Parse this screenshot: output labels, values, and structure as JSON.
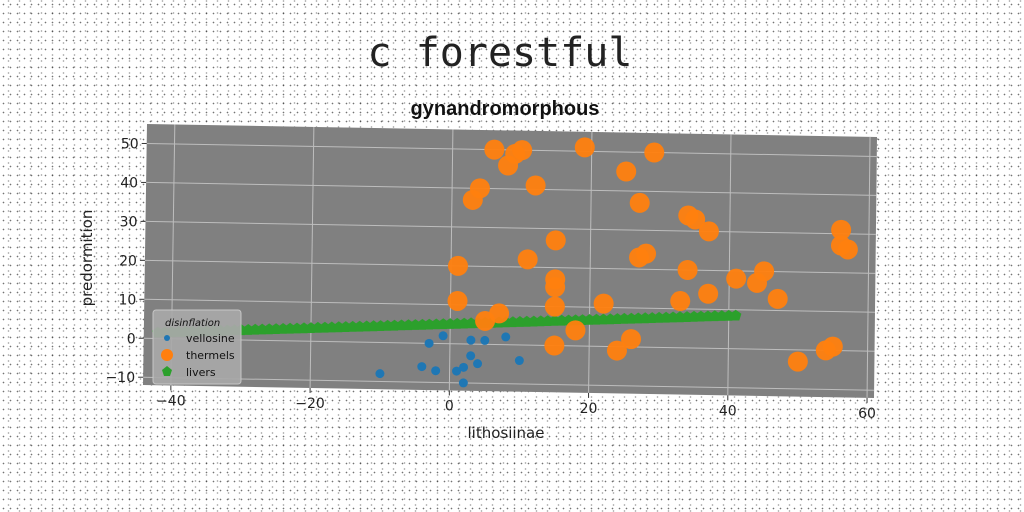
{
  "page": {
    "suptitle": "c forestful"
  },
  "colors": {
    "vellosine": "#1f77b4",
    "thermels": "#ff7f0e",
    "livers": "#2ca02c",
    "plot_bg": "#808080",
    "grid": "#bdbdbd"
  },
  "chart_data": {
    "type": "scatter",
    "title": "gynandromorphous",
    "xlabel": "lithosiinae",
    "ylabel": "predormition",
    "xlim": [
      -44,
      61
    ],
    "ylim": [
      -12,
      55
    ],
    "xticks": [
      "−40",
      "−20",
      "0",
      "20",
      "40",
      "60"
    ],
    "yticks": [
      "−10",
      "0",
      "10",
      "20",
      "30",
      "40",
      "50"
    ],
    "xtick_values": [
      -40,
      -20,
      0,
      20,
      40,
      60
    ],
    "ytick_values": [
      -10,
      0,
      10,
      20,
      30,
      40,
      50
    ],
    "grid": true,
    "legend": {
      "title": "disinflation",
      "position": "lower-left"
    },
    "series": [
      {
        "name": "vellosine",
        "marker": "circle",
        "points": [
          [
            -10,
            -8
          ],
          [
            -4,
            -6
          ],
          [
            -3,
            0
          ],
          [
            -2,
            -7
          ],
          [
            -1,
            2
          ],
          [
            1,
            -7
          ],
          [
            2,
            -6
          ],
          [
            2,
            -10
          ],
          [
            3,
            1
          ],
          [
            3,
            -3
          ],
          [
            4,
            -5
          ],
          [
            5,
            1
          ],
          [
            8,
            2
          ],
          [
            10,
            -4
          ]
        ]
      },
      {
        "name": "thermels",
        "marker": "circle-large",
        "points": [
          [
            1,
            20
          ],
          [
            1,
            11
          ],
          [
            3,
            37
          ],
          [
            4,
            40
          ],
          [
            5,
            6
          ],
          [
            6,
            50
          ],
          [
            7,
            8
          ],
          [
            8,
            46
          ],
          [
            9,
            49
          ],
          [
            10,
            50
          ],
          [
            11,
            22
          ],
          [
            12,
            41
          ],
          [
            15,
            10
          ],
          [
            15,
            27
          ],
          [
            15,
            17
          ],
          [
            15,
            15
          ],
          [
            15,
            0
          ],
          [
            18,
            4
          ],
          [
            19,
            51
          ],
          [
            22,
            11
          ],
          [
            24,
            -1
          ],
          [
            25,
            45
          ],
          [
            26,
            2
          ],
          [
            27,
            37
          ],
          [
            27,
            23
          ],
          [
            28,
            24
          ],
          [
            29,
            50
          ],
          [
            33,
            12
          ],
          [
            34,
            20
          ],
          [
            34,
            34
          ],
          [
            35,
            33
          ],
          [
            37,
            30
          ],
          [
            37,
            14
          ],
          [
            41,
            18
          ],
          [
            44,
            17
          ],
          [
            45,
            20
          ],
          [
            47,
            13
          ],
          [
            50,
            -3
          ],
          [
            54,
            0
          ],
          [
            55,
            1
          ],
          [
            56,
            31
          ],
          [
            56,
            27
          ],
          [
            57,
            26
          ]
        ]
      },
      {
        "name": "livers",
        "marker": "pentagon",
        "line": {
          "x_start": -42,
          "x_end": 41,
          "y_start": 1.5,
          "y_end": 8.5,
          "count": 84
        }
      }
    ]
  }
}
